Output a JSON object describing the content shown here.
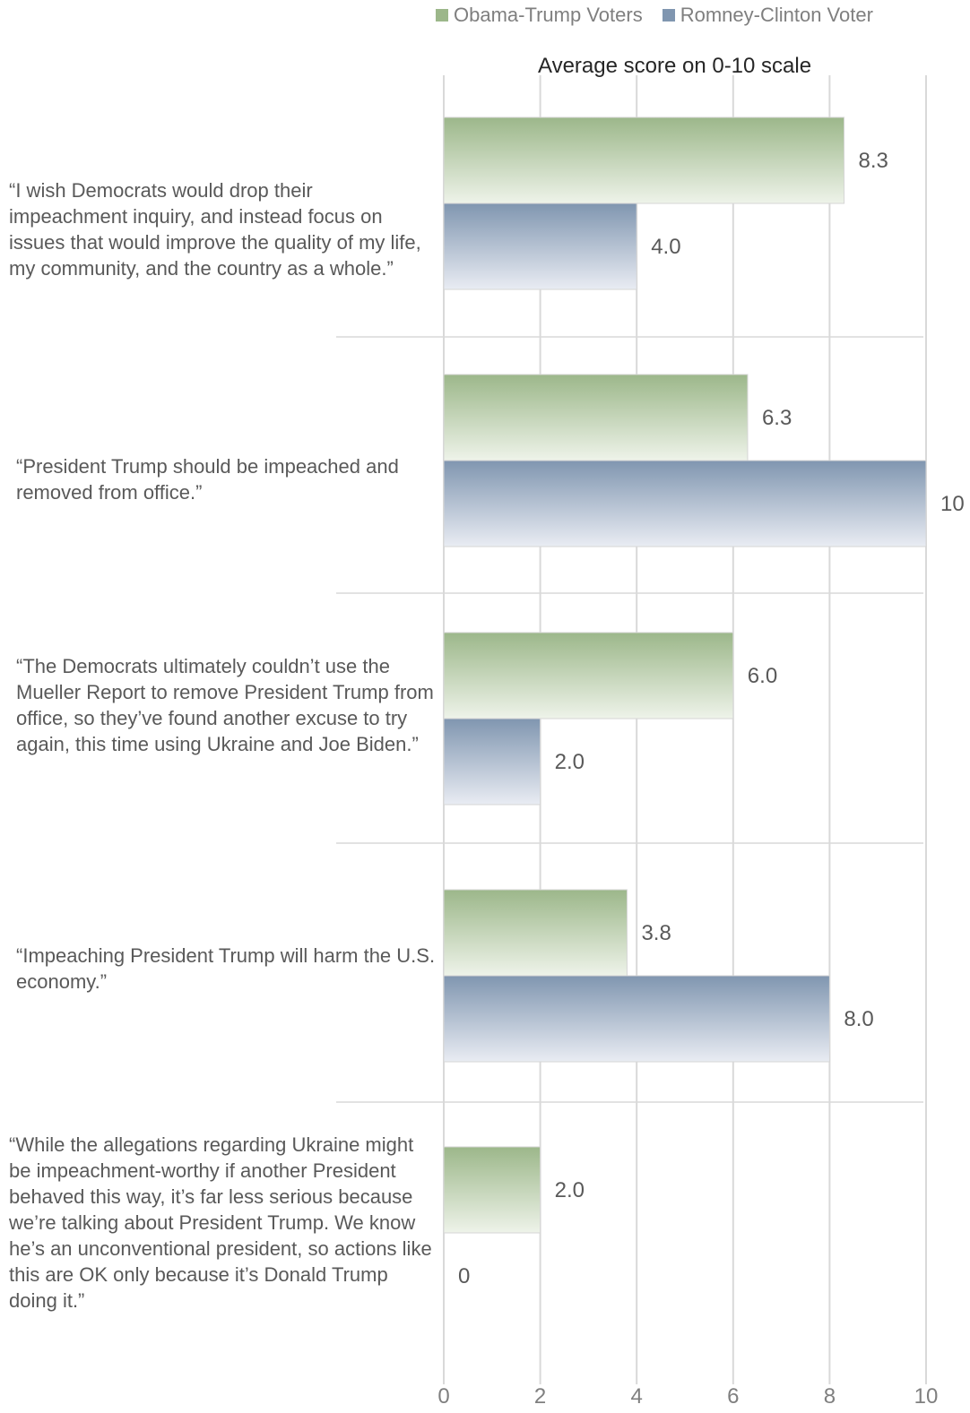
{
  "chart_data": {
    "type": "bar",
    "orientation": "horizontal",
    "xlabel": "Average score on 0-10 scale",
    "xlim": [
      0,
      10
    ],
    "x_ticks": [
      0,
      2,
      4,
      6,
      8,
      10
    ],
    "grid": true,
    "legend_position": "top-right",
    "categories": [
      "“I wish Democrats would drop their impeachment inquiry, and instead focus on issues that would improve the quality of my life, my community, and the country as a whole.”",
      "“President Trump should be impeached and removed from office.”",
      "“The Democrats ultimately couldn’t use the Mueller Report to remove President Trump from office, so they’ve found another excuse to try again, this time using Ukraine and Joe Biden.”",
      "“Impeaching President Trump will harm the U.S. economy.”",
      "“While the allegations regarding Ukraine might be impeachment-worthy if another President behaved this way, it’s far less serious because we’re talking about President Trump. We know he’s an unconventional president, so actions like this are OK only because it’s Donald Trump doing it.”"
    ],
    "series": [
      {
        "name": "Obama-Trump Voters",
        "color": "#9cb78a",
        "values": [
          8.3,
          6.3,
          6.0,
          3.8,
          2.0
        ],
        "labels": [
          "8.3",
          "6.3",
          "6.0",
          "3.8",
          "2.0"
        ]
      },
      {
        "name": "Romney-Clinton Voter",
        "color": "#8096b0",
        "values": [
          4.0,
          10,
          2.0,
          8.0,
          0
        ],
        "labels": [
          "4.0",
          "10",
          "2.0",
          "8.0",
          "0"
        ]
      }
    ]
  }
}
